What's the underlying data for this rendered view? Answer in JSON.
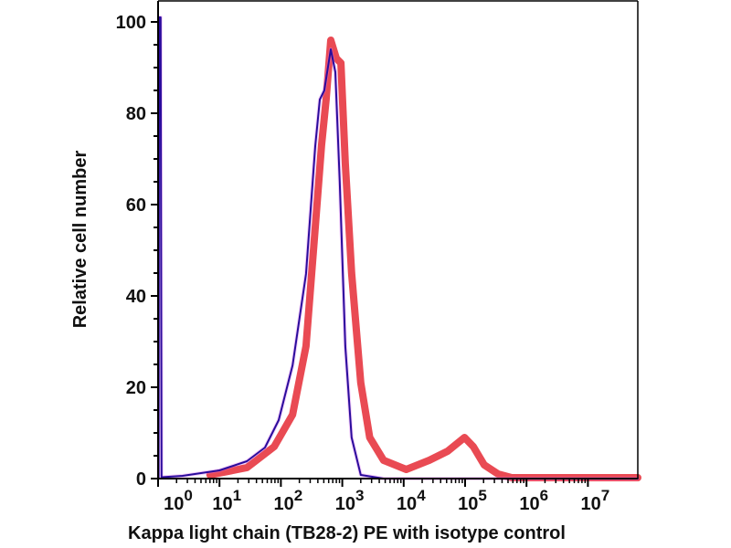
{
  "chart_data": {
    "type": "line",
    "title": "",
    "xlabel": "Kappa light chain (TB28-2) PE with isotype control",
    "ylabel": "Relative cell number",
    "xscale": "log",
    "xlim": [
      1,
      65000000
    ],
    "ylim": [
      0,
      104
    ],
    "x_ticks": [
      {
        "value": 1,
        "base": "10",
        "exp": "0"
      },
      {
        "value": 10,
        "base": "10",
        "exp": "1"
      },
      {
        "value": 100,
        "base": "10",
        "exp": "2"
      },
      {
        "value": 1000,
        "base": "10",
        "exp": "3"
      },
      {
        "value": 10000,
        "base": "10",
        "exp": "4"
      },
      {
        "value": 100000,
        "base": "10",
        "exp": "5"
      },
      {
        "value": 1000000,
        "base": "10",
        "exp": "6"
      },
      {
        "value": 10000000,
        "base": "10",
        "exp": "7"
      }
    ],
    "y_ticks": [
      "0",
      "20",
      "40",
      "60",
      "80",
      "100"
    ],
    "grid": false,
    "legend": "none",
    "series": [
      {
        "color": "#e8404a",
        "x": [
          7,
          28,
          78,
          155,
          257,
          363,
          460,
          545,
          650,
          800,
          950,
          1120,
          1420,
          2000,
          2800,
          4700,
          11000,
          26000,
          52000,
          98000,
          136000,
          205000,
          345000,
          575000,
          65000000
        ],
        "y": [
          0.8,
          2.4,
          7,
          14,
          29,
          55,
          73,
          83,
          96,
          92,
          91,
          69,
          45,
          21,
          9,
          4,
          2,
          4,
          6,
          9,
          7,
          3,
          1,
          0.2,
          0.2
        ]
      },
      {
        "color": "#2a0c9c",
        "x": [
          1.02,
          1.04,
          1.1,
          1.14,
          2.5,
          10,
          28,
          55,
          92,
          155,
          257,
          363,
          430,
          510,
          650,
          770,
          910,
          1120,
          1420,
          2000,
          4700,
          65000000
        ],
        "y": [
          0,
          101,
          101,
          0.3,
          0.6,
          1.8,
          3.8,
          6.8,
          12.8,
          24.8,
          44.8,
          72.8,
          83,
          85,
          94,
          89,
          65,
          29,
          9,
          0.8,
          0,
          0
        ]
      }
    ]
  }
}
